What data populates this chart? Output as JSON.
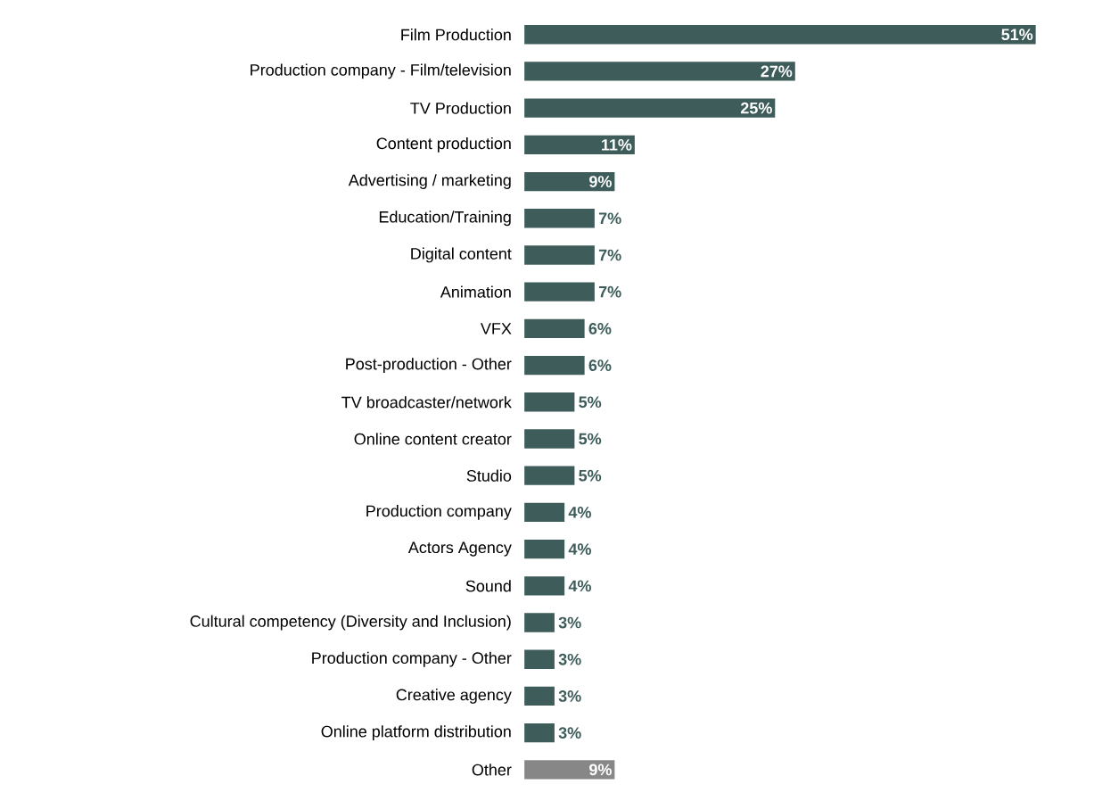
{
  "chart_data": {
    "type": "bar",
    "orientation": "horizontal",
    "categories": [
      "Film Production",
      "Production company - Film/television",
      "TV Production",
      "Content production",
      "Advertising / marketing",
      "Education/Training",
      "Digital content",
      "Animation",
      "VFX",
      "Post-production - Other",
      "TV broadcaster/network",
      "Online content creator",
      "Studio",
      "Production company",
      "Actors Agency",
      "Sound",
      "Cultural competency (Diversity and Inclusion)",
      "Production company - Other",
      "Creative agency",
      "Online platform distribution",
      "Other"
    ],
    "values": [
      51,
      27,
      25,
      11,
      9,
      7,
      7,
      7,
      6,
      6,
      5,
      5,
      5,
      4,
      4,
      4,
      3,
      3,
      3,
      3,
      9
    ],
    "value_labels": [
      "51%",
      "27%",
      "25%",
      "11%",
      "9%",
      "7%",
      "7%",
      "7%",
      "6%",
      "6%",
      "5%",
      "5%",
      "5%",
      "4%",
      "4%",
      "4%",
      "3%",
      "3%",
      "3%",
      "3%",
      "9%"
    ],
    "colors": [
      "#3d5c5a",
      "#3d5c5a",
      "#3d5c5a",
      "#3d5c5a",
      "#3d5c5a",
      "#3d5c5a",
      "#3d5c5a",
      "#3d5c5a",
      "#3d5c5a",
      "#3d5c5a",
      "#3d5c5a",
      "#3d5c5a",
      "#3d5c5a",
      "#3d5c5a",
      "#3d5c5a",
      "#3d5c5a",
      "#3d5c5a",
      "#3d5c5a",
      "#3d5c5a",
      "#3d5c5a",
      "#878787"
    ]
  }
}
